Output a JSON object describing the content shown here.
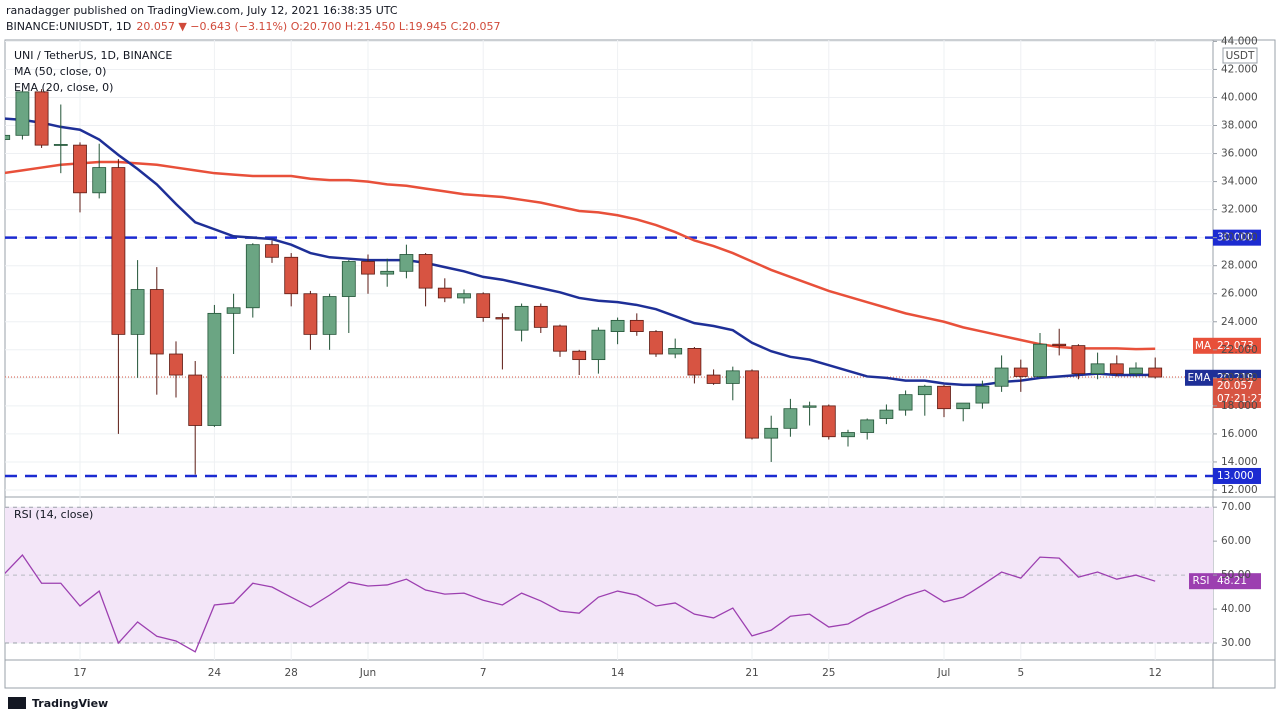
{
  "header": {
    "published": "ranadagger published on TradingView.com, July 12, 2021 16:38:35 UTC",
    "symbol": "BINANCE:UNIUSDT, 1D",
    "quote": "20.057 ▼ −0.643 (−3.11%) O:20.700 H:21.450 L:19.945 C:20.057"
  },
  "footer": "TradingView",
  "chart_data": [
    {
      "type": "candlestick",
      "title": "UNI / TetherUS, 1D, BINANCE",
      "categories": [
        null,
        null,
        null,
        null,
        "17",
        null,
        null,
        null,
        null,
        null,
        null,
        "24",
        null,
        null,
        null,
        "28",
        null,
        null,
        null,
        "Jun",
        null,
        null,
        null,
        null,
        null,
        "7",
        null,
        null,
        null,
        null,
        null,
        null,
        "14",
        null,
        null,
        null,
        null,
        null,
        null,
        "21",
        null,
        null,
        null,
        "25",
        null,
        null,
        null,
        null,
        null,
        "Jul",
        null,
        null,
        null,
        "5",
        null,
        null,
        null,
        null,
        null,
        null,
        "12"
      ],
      "open": [
        37.0,
        37.3,
        40.4,
        36.6,
        36.6,
        33.2,
        35.0,
        23.1,
        26.3,
        21.7,
        20.2,
        16.6,
        24.6,
        25.0,
        29.5,
        28.6,
        26.0,
        23.1,
        25.8,
        28.3,
        27.4,
        27.6,
        28.8,
        26.4,
        25.7,
        26.0,
        24.3,
        23.4,
        25.1,
        23.7,
        21.9,
        21.3,
        23.3,
        24.1,
        23.3,
        21.7,
        22.1,
        20.2,
        19.6,
        20.5,
        15.7,
        16.4,
        17.9,
        18.0,
        15.8,
        16.1,
        17.1,
        17.7,
        18.8,
        19.4,
        17.8,
        18.2,
        19.4,
        20.7,
        20.1,
        22.4,
        22.3,
        20.3,
        21.0,
        20.3,
        20.7
      ],
      "high": [
        38.0,
        40.5,
        40.6,
        39.5,
        36.8,
        36.7,
        35.6,
        28.4,
        27.9,
        22.6,
        21.2,
        25.2,
        26.0,
        29.6,
        29.8,
        28.9,
        26.2,
        26.0,
        28.4,
        28.8,
        28.5,
        29.5,
        28.9,
        27.1,
        26.3,
        26.1,
        24.6,
        25.3,
        25.3,
        23.8,
        22.0,
        23.6,
        24.3,
        24.6,
        23.4,
        22.8,
        22.2,
        20.6,
        20.8,
        20.6,
        17.3,
        18.5,
        18.3,
        18.1,
        16.3,
        17.1,
        18.1,
        19.1,
        19.5,
        19.5,
        18.2,
        19.8,
        21.6,
        21.3,
        23.2,
        23.5,
        22.4,
        21.8,
        21.6,
        21.1,
        21.45
      ],
      "low": [
        36.8,
        37.0,
        36.4,
        34.6,
        31.8,
        32.8,
        16.0,
        20.0,
        18.8,
        18.6,
        13.1,
        16.5,
        21.7,
        24.3,
        28.2,
        25.1,
        22.0,
        22.0,
        23.2,
        26.0,
        26.5,
        27.1,
        25.1,
        25.4,
        25.3,
        24.0,
        20.6,
        22.6,
        23.2,
        21.5,
        20.2,
        20.3,
        22.4,
        23.0,
        21.5,
        21.4,
        19.6,
        19.5,
        18.4,
        15.6,
        14.0,
        15.8,
        16.6,
        15.6,
        15.1,
        15.6,
        16.7,
        17.3,
        17.3,
        17.2,
        16.9,
        17.8,
        19.0,
        19.0,
        20.0,
        21.6,
        19.9,
        19.9,
        20.1,
        20.1,
        19.945
      ],
      "close": [
        37.3,
        40.4,
        36.6,
        36.65,
        33.2,
        35.0,
        23.1,
        26.3,
        21.7,
        20.2,
        16.6,
        24.6,
        25.0,
        29.5,
        28.6,
        26.0,
        23.1,
        25.8,
        28.3,
        27.4,
        27.6,
        28.8,
        26.4,
        25.7,
        26.0,
        24.3,
        24.2,
        25.1,
        23.6,
        21.9,
        21.3,
        23.4,
        24.1,
        23.3,
        21.7,
        22.1,
        20.2,
        19.6,
        20.5,
        15.7,
        16.4,
        17.8,
        18.0,
        15.8,
        16.1,
        17.0,
        17.7,
        18.8,
        19.4,
        17.8,
        18.2,
        19.4,
        20.7,
        20.1,
        22.4,
        22.3,
        20.3,
        21.0,
        20.3,
        20.7,
        20.057
      ],
      "up_color": "#6ba583",
      "up_border": "#225437",
      "down_color": "#d75442",
      "down_border": "#5b1a13",
      "series": [
        {
          "name": "MA (50, close, 0)",
          "tag": "MA",
          "tag_label": "22.073",
          "color": "#e8503a",
          "values": [
            34.6,
            34.8,
            35.0,
            35.2,
            35.3,
            35.4,
            35.4,
            35.3,
            35.2,
            35.0,
            34.8,
            34.6,
            34.5,
            34.4,
            34.4,
            34.4,
            34.2,
            34.1,
            34.1,
            34.0,
            33.8,
            33.7,
            33.5,
            33.3,
            33.1,
            33.0,
            32.9,
            32.7,
            32.5,
            32.2,
            31.9,
            31.8,
            31.6,
            31.3,
            30.9,
            30.4,
            29.8,
            29.4,
            28.9,
            28.3,
            27.7,
            27.2,
            26.7,
            26.2,
            25.8,
            25.4,
            25.0,
            24.6,
            24.3,
            24.0,
            23.6,
            23.3,
            23.0,
            22.7,
            22.4,
            22.2,
            22.1,
            22.1,
            22.1,
            22.05,
            22.073
          ]
        },
        {
          "name": "EMA (20, close, 0)",
          "tag": "EMA",
          "tag_label": "20.219",
          "color": "#1e2f97",
          "values": [
            38.5,
            38.4,
            38.2,
            37.9,
            37.7,
            37.0,
            35.9,
            34.9,
            33.8,
            32.4,
            31.1,
            30.6,
            30.1,
            30.0,
            29.9,
            29.5,
            28.9,
            28.6,
            28.5,
            28.4,
            28.4,
            28.4,
            28.2,
            27.9,
            27.6,
            27.2,
            27.0,
            26.7,
            26.4,
            26.1,
            25.7,
            25.5,
            25.4,
            25.2,
            24.9,
            24.4,
            23.9,
            23.7,
            23.4,
            22.5,
            21.9,
            21.5,
            21.3,
            20.9,
            20.5,
            20.1,
            20.0,
            19.8,
            19.8,
            19.6,
            19.5,
            19.5,
            19.7,
            19.8,
            20.0,
            20.1,
            20.2,
            20.3,
            20.2,
            20.2,
            20.219
          ]
        }
      ],
      "levels": [
        {
          "value": 30,
          "label": "30.000"
        },
        {
          "value": 13,
          "label": "13.000"
        }
      ],
      "level_color": "#1c2bd1",
      "currency": "USDT",
      "last_label": "20.057",
      "countdown": "07:21:27",
      "ylim": [
        11.5,
        44.1
      ],
      "yticks": [
        {
          "value": 12,
          "label": "12.000"
        },
        {
          "value": 14,
          "label": "14.000"
        },
        {
          "value": 16,
          "label": "16.000"
        },
        {
          "value": 18,
          "label": "18.000"
        },
        {
          "value": 20,
          "label": "20.000"
        },
        {
          "value": 22,
          "label": "22.000"
        },
        {
          "value": 24,
          "label": "24.000"
        },
        {
          "value": 26,
          "label": "26.000"
        },
        {
          "value": 28,
          "label": "28.000"
        },
        {
          "value": 30,
          "label": "30.000"
        },
        {
          "value": 32,
          "label": "32.000"
        },
        {
          "value": 34,
          "label": "34.000"
        },
        {
          "value": 36,
          "label": "36.000"
        },
        {
          "value": 38,
          "label": "38.000"
        },
        {
          "value": 40,
          "label": "40.000"
        },
        {
          "value": 42,
          "label": "42.000"
        },
        {
          "value": 44,
          "label": "44.000"
        }
      ],
      "grid": true
    },
    {
      "type": "line",
      "title": "RSI (14, close)",
      "series": [
        {
          "name": "RSI",
          "tag_label": "48.21",
          "color": "#9c3fb0",
          "values": [
            50,
            55.9,
            47.6,
            47.6,
            40.9,
            45.3,
            30,
            36.2,
            32,
            30.6,
            27.4,
            41.2,
            41.8,
            47.6,
            46.5,
            43.5,
            40.6,
            44.1,
            47.9,
            46.8,
            47.1,
            48.8,
            45.6,
            44.4,
            44.7,
            42.6,
            41.2,
            44.7,
            42.4,
            39.4,
            38.8,
            43.5,
            45.3,
            44.1,
            40.9,
            41.8,
            38.5,
            37.4,
            40.3,
            32.1,
            33.8,
            37.9,
            38.5,
            34.7,
            35.6,
            38.8,
            41.2,
            43.8,
            45.6,
            42.1,
            43.5,
            47.1,
            50.9,
            49.1,
            55.3,
            55,
            49.4,
            50.9,
            48.8,
            50,
            48.21
          ]
        }
      ],
      "band": [
        30,
        70
      ],
      "band_color": "#f3e6f8",
      "ylim": [
        25,
        73
      ],
      "yticks": [
        {
          "value": 30,
          "label": "30.00"
        },
        {
          "value": 40,
          "label": "40.00"
        },
        {
          "value": 50,
          "label": "50.00"
        },
        {
          "value": 60,
          "label": "60.00"
        },
        {
          "value": 70,
          "label": "70.00"
        }
      ],
      "grid": true
    }
  ]
}
